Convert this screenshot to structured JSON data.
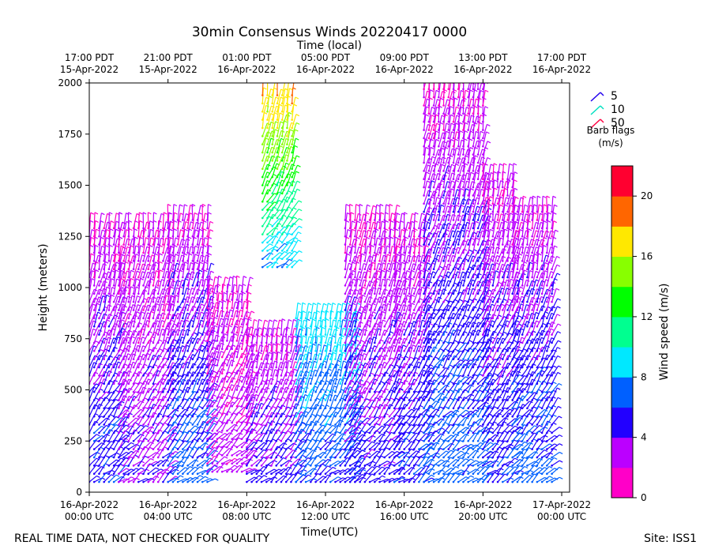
{
  "chart_data": {
    "type": "wind_barb_time_height",
    "title": "30min Consensus Winds 20220417 0000",
    "xlabel_bottom": "Time(UTC)",
    "xlabel_top": "Time (local)",
    "ylabel": "Height (meters)",
    "xlim_hours": [
      0,
      24.4
    ],
    "ylim": [
      0,
      2000
    ],
    "y_ticks": [
      0,
      250,
      500,
      750,
      1000,
      1250,
      1500,
      1750,
      2000
    ],
    "x_ticks_bottom": [
      {
        "hour": 0,
        "line1": "16-Apr-2022",
        "line2": "00:00 UTC"
      },
      {
        "hour": 4,
        "line1": "16-Apr-2022",
        "line2": "04:00 UTC"
      },
      {
        "hour": 8,
        "line1": "16-Apr-2022",
        "line2": "08:00 UTC"
      },
      {
        "hour": 12,
        "line1": "16-Apr-2022",
        "line2": "12:00 UTC"
      },
      {
        "hour": 16,
        "line1": "16-Apr-2022",
        "line2": "16:00 UTC"
      },
      {
        "hour": 20,
        "line1": "16-Apr-2022",
        "line2": "20:00 UTC"
      },
      {
        "hour": 24,
        "line1": "17-Apr-2022",
        "line2": "00:00 UTC"
      }
    ],
    "x_ticks_top": [
      {
        "hour": 0,
        "line1": "17:00 PDT",
        "line2": "15-Apr-2022"
      },
      {
        "hour": 4,
        "line1": "21:00 PDT",
        "line2": "15-Apr-2022"
      },
      {
        "hour": 8,
        "line1": "01:00 PDT",
        "line2": "16-Apr-2022"
      },
      {
        "hour": 12,
        "line1": "05:00 PDT",
        "line2": "16-Apr-2022"
      },
      {
        "hour": 16,
        "line1": "09:00 PDT",
        "line2": "16-Apr-2022"
      },
      {
        "hour": 20,
        "line1": "13:00 PDT",
        "line2": "16-Apr-2022"
      },
      {
        "hour": 24,
        "line1": "17:00 PDT",
        "line2": "16-Apr-2022"
      }
    ],
    "barb_legend": {
      "items": [
        {
          "label": "5",
          "color": "#2200ee"
        },
        {
          "label": "10",
          "color": "#00e0c0"
        },
        {
          "label": "50",
          "color": "#ff0040"
        }
      ],
      "caption_line1": "Barb flags",
      "caption_line2": "(m/s)"
    },
    "colorbar": {
      "label": "Wind speed (m/s)",
      "min": 0,
      "max": 22,
      "ticks": [
        0,
        4,
        8,
        12,
        16,
        20
      ],
      "colors": [
        "#ff00c8",
        "#bb00ff",
        "#2200ff",
        "#0060ff",
        "#00e8ff",
        "#00ff90",
        "#00ff00",
        "#88ff00",
        "#ffe800",
        "#ff6600",
        "#ff0030"
      ]
    },
    "series": [
      {
        "hour_start": 0,
        "hour_end": 1.5,
        "height_min": 50,
        "height_max": 1300,
        "speed_low": 6,
        "speed_high": 2
      },
      {
        "hour_start": 1.5,
        "hour_end": 4,
        "height_min": 50,
        "height_max": 1300,
        "speed_low": 4,
        "speed_high": 2
      },
      {
        "hour_start": 4,
        "hour_end": 6,
        "height_min": 50,
        "height_max": 1350,
        "speed_low": 7,
        "speed_high": 2
      },
      {
        "hour_start": 6,
        "hour_end": 8,
        "height_min": 100,
        "height_max": 1000,
        "speed_low": 3,
        "speed_high": 2
      },
      {
        "hour_start": 8,
        "hour_end": 10.5,
        "height_min": 50,
        "height_max": 800,
        "speed_low": 5,
        "speed_high": 2
      },
      {
        "hour_start": 8.8,
        "hour_end": 10.5,
        "height_min": 1100,
        "height_max": 1950,
        "speed_low": 8,
        "speed_high": 18
      },
      {
        "hour_start": 10.5,
        "hour_end": 13.5,
        "height_min": 50,
        "height_max": 850,
        "speed_low": 6,
        "speed_high": 9
      },
      {
        "hour_start": 13,
        "hour_end": 15.5,
        "height_min": 50,
        "height_max": 1350,
        "speed_low": 5,
        "speed_high": 2
      },
      {
        "hour_start": 15.5,
        "hour_end": 17,
        "height_min": 50,
        "height_max": 1300,
        "speed_low": 6,
        "speed_high": 2
      },
      {
        "hour_start": 17,
        "hour_end": 20,
        "height_min": 50,
        "height_max": 2000,
        "speed_low": 7,
        "speed_high": 2
      },
      {
        "hour_start": 20,
        "hour_end": 21.5,
        "height_min": 50,
        "height_max": 1550,
        "speed_low": 6,
        "speed_high": 2
      },
      {
        "hour_start": 21.5,
        "hour_end": 23.5,
        "height_min": 50,
        "height_max": 1400,
        "speed_low": 7,
        "speed_high": 2
      }
    ]
  },
  "footer": {
    "left": "REAL TIME DATA, NOT CHECKED FOR QUALITY",
    "right": "Site: ISS1"
  }
}
